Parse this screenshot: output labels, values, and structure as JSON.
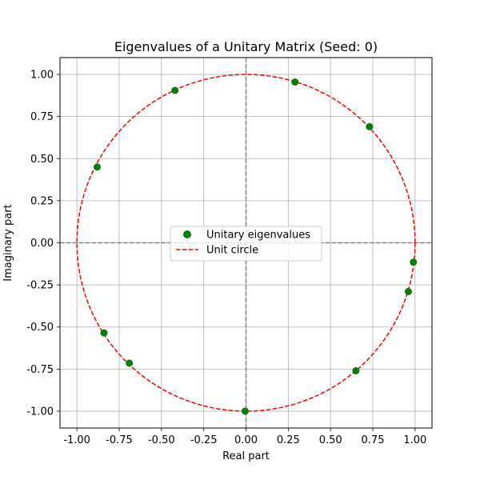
{
  "chart_data": {
    "type": "scatter",
    "title": "Eigenvalues of a Unitary Matrix (Seed: 0)",
    "xlabel": "Real part",
    "ylabel": "Imaginary part",
    "xlim": [
      -1.1,
      1.1
    ],
    "ylim": [
      -1.1,
      1.1
    ],
    "xticks": [
      "-1.00",
      "-0.75",
      "-0.50",
      "-0.25",
      "0.00",
      "0.25",
      "0.50",
      "0.75",
      "1.00"
    ],
    "yticks": [
      "-1.00",
      "-0.75",
      "-0.50",
      "-0.25",
      "0.00",
      "0.25",
      "0.50",
      "0.75",
      "1.00"
    ],
    "grid": true,
    "legend_position": "center",
    "series": [
      {
        "name": "Unitary eigenvalues",
        "kind": "scatter",
        "color": "#008000",
        "points": [
          [
            0.29,
            0.955
          ],
          [
            0.73,
            0.69
          ],
          [
            -0.42,
            0.905
          ],
          [
            -0.88,
            0.45
          ],
          [
            0.99,
            -0.115
          ],
          [
            0.96,
            -0.29
          ],
          [
            -0.84,
            -0.535
          ],
          [
            -0.69,
            -0.715
          ],
          [
            0.65,
            -0.76
          ],
          [
            -0.005,
            -1.0
          ]
        ]
      },
      {
        "name": "Unit circle",
        "kind": "line",
        "style": "dashed",
        "color": "#ff0000"
      }
    ],
    "reference_lines": {
      "x0": true,
      "y0": true,
      "color": "#808080",
      "style": "dashed"
    }
  }
}
